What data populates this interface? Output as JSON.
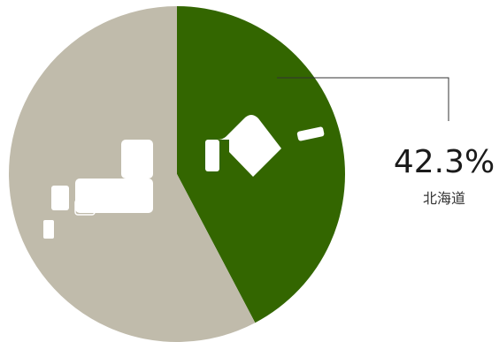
{
  "chart_data": {
    "type": "pie",
    "slices": [
      {
        "label": "北海道",
        "value": 42.3,
        "color": "#336600"
      },
      {
        "label": "",
        "value": 57.7,
        "color": "#c0bbab"
      }
    ],
    "annotation": {
      "value_text": "42.3%",
      "label": "北海道"
    }
  },
  "colors": {
    "highlight": "#336600",
    "rest": "#c0bbab",
    "icon": "#ffffff"
  },
  "icons": {
    "highlight_slice": "hokkaido-map-icon",
    "rest_slice": "japan-main-islands-map-icon"
  }
}
